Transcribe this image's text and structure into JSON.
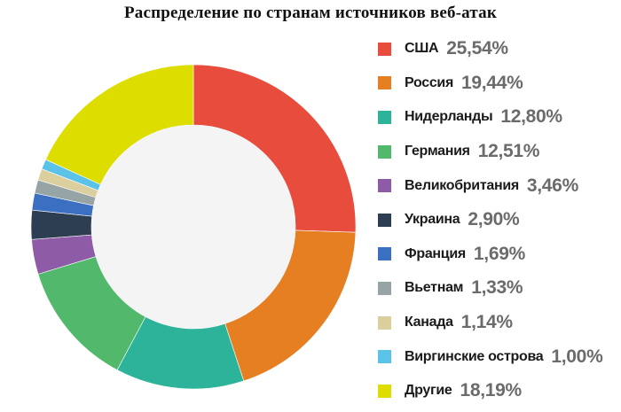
{
  "chart_data": {
    "type": "pie",
    "title": "Распределение по странам источников веб-атак",
    "donut": true,
    "legend_position": "right",
    "slices": [
      {
        "label": "США",
        "value": 25.54,
        "display": "25,54%",
        "color": "#E74C3C"
      },
      {
        "label": "Россия",
        "value": 19.44,
        "display": "19,44%",
        "color": "#E67E22"
      },
      {
        "label": "Нидерланды",
        "value": 12.8,
        "display": "12,80%",
        "color": "#2CB39A"
      },
      {
        "label": "Германия",
        "value": 12.51,
        "display": "12,51%",
        "color": "#52B86B"
      },
      {
        "label": "Великобритания",
        "value": 3.46,
        "display": "3,46%",
        "color": "#8E5BA6"
      },
      {
        "label": "Украина",
        "value": 2.9,
        "display": "2,90%",
        "color": "#2E3E52"
      },
      {
        "label": "Франция",
        "value": 1.69,
        "display": "1,69%",
        "color": "#3B6FC2"
      },
      {
        "label": "Вьетнам",
        "value": 1.33,
        "display": "1,33%",
        "color": "#97A4A6"
      },
      {
        "label": "Канада",
        "value": 1.14,
        "display": "1,14%",
        "color": "#DCCF9E"
      },
      {
        "label": "Виргинские острова",
        "value": 1.0,
        "display": "1,00%",
        "color": "#5BC3E8"
      },
      {
        "label": "Другие",
        "value": 18.19,
        "display": "18,19%",
        "color": "#DDDD00"
      }
    ],
    "center_color": "#F4F4F4"
  }
}
